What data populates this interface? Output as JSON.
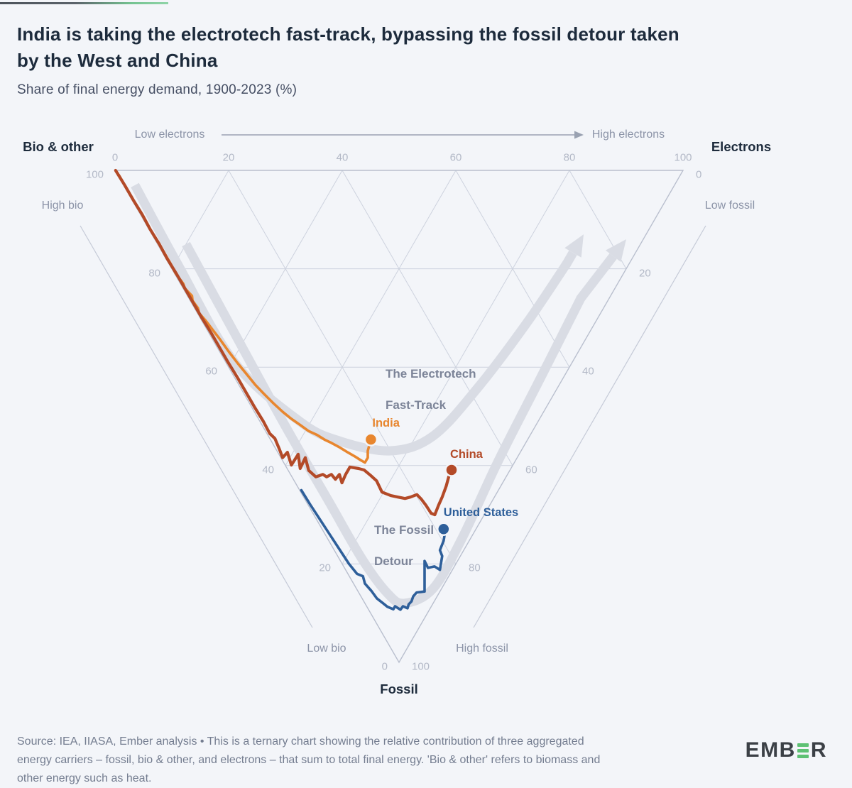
{
  "header": {
    "title": "India is taking the electrotech fast-track, bypassing the fossil detour taken\nby the West and China",
    "subtitle": "Share of final energy demand, 1900-2023 (%)"
  },
  "chart_data": {
    "type": "ternary",
    "title": "India is taking the electrotech fast-track, bypassing the fossil detour taken by the West and China",
    "subtitle": "Share of final energy demand, 1900-2023 (%)",
    "point_format": "[fossil_pct, electrons_pct]; bio_other_pct = 100 - fossil - electrons",
    "axes": {
      "top": {
        "corner_label": "Electrons",
        "low_label": "Low electrons",
        "high_label": "High electrons",
        "ticks": [
          0,
          20,
          40,
          60,
          80,
          100
        ]
      },
      "left": {
        "corner_label": "Bio & other",
        "high_label": "High bio",
        "low_label": "Low bio",
        "ticks": [
          100,
          80,
          60,
          40,
          20,
          0
        ]
      },
      "right": {
        "corner_label": "Fossil",
        "low_label": "Low fossil",
        "high_label": "High fossil",
        "ticks": [
          0,
          20,
          40,
          60,
          80,
          100
        ]
      }
    },
    "grid": {
      "step": 20,
      "on": true
    },
    "series": [
      {
        "name": "India",
        "color": "#e8862e",
        "points": [
          [
            1,
            0.2
          ],
          [
            4,
            0.2
          ],
          [
            7,
            0.2
          ],
          [
            10,
            0.3
          ],
          [
            13,
            0.2
          ],
          [
            16,
            0.3
          ],
          [
            19,
            0.3
          ],
          [
            21,
            0.2
          ],
          [
            23,
            0.5
          ],
          [
            24,
            0.3
          ],
          [
            25.5,
            0.8
          ],
          [
            26.5,
            0.4
          ],
          [
            28,
            0.6
          ],
          [
            29,
            0.3
          ],
          [
            30.6,
            0.7
          ],
          [
            32.5,
            1.0
          ],
          [
            34.3,
            1.3
          ],
          [
            36.8,
            1.6
          ],
          [
            39.2,
            2.0
          ],
          [
            41.6,
            2.5
          ],
          [
            43.6,
            2.9
          ],
          [
            45.4,
            3.5
          ],
          [
            47.3,
            4.2
          ],
          [
            49.1,
            5.0
          ],
          [
            50.5,
            5.8
          ],
          [
            51.7,
            6.7
          ],
          [
            53.0,
            7.6
          ],
          [
            53.8,
            8.7
          ],
          [
            54.8,
            9.6
          ],
          [
            55.4,
            10.4
          ],
          [
            56.3,
            11.4
          ],
          [
            57.3,
            12.3
          ],
          [
            58.2,
            13.2
          ],
          [
            58.9,
            13.8
          ],
          [
            59.4,
            14.3
          ],
          [
            58.4,
            15.3
          ],
          [
            57.0,
            16.0
          ],
          [
            54.7,
            17.7
          ]
        ]
      },
      {
        "name": "China",
        "color": "#b34a28",
        "points": [
          [
            0,
            0.1
          ],
          [
            3,
            0.2
          ],
          [
            6,
            0.2
          ],
          [
            9,
            0.3
          ],
          [
            12,
            0.2
          ],
          [
            15,
            0.3
          ],
          [
            18,
            0.2
          ],
          [
            21,
            0.3
          ],
          [
            24,
            0.3
          ],
          [
            27,
            0.3
          ],
          [
            30,
            0.3
          ],
          [
            33,
            0.4
          ],
          [
            36,
            0.4
          ],
          [
            39,
            0.4
          ],
          [
            42,
            0.5
          ],
          [
            45,
            0.5
          ],
          [
            48,
            0.5
          ],
          [
            51,
            0.6
          ],
          [
            53.5,
            0.5
          ],
          [
            54.5,
            0.9
          ],
          [
            56.7,
            0.6
          ],
          [
            58.4,
            0.3
          ],
          [
            57.3,
            1.7
          ],
          [
            59.9,
            1.1
          ],
          [
            57.7,
            3.4
          ],
          [
            60.6,
            2.3
          ],
          [
            58.4,
            4.3
          ],
          [
            61.0,
            3.6
          ],
          [
            62.3,
            4.2
          ],
          [
            61.8,
            5.7
          ],
          [
            62.3,
            6.1
          ],
          [
            61.8,
            7.2
          ],
          [
            62.8,
            7.4
          ],
          [
            61.8,
            8.6
          ],
          [
            63.5,
            8.2
          ],
          [
            61.8,
            9.7
          ],
          [
            60.3,
            11.2
          ],
          [
            60.6,
            12.6
          ],
          [
            60.9,
            13.4
          ],
          [
            62.0,
            14.0
          ],
          [
            63.1,
            14.5
          ],
          [
            65.4,
            14.3
          ],
          [
            66.1,
            15.5
          ],
          [
            66.4,
            16.6
          ],
          [
            66.7,
            17.7
          ],
          [
            66.4,
            18.8
          ],
          [
            65.9,
            20.2
          ],
          [
            66.8,
            20.5
          ],
          [
            68.1,
            20.7
          ],
          [
            69.7,
            20.8
          ],
          [
            70.0,
            21.3
          ],
          [
            68.1,
            22.9
          ],
          [
            66.4,
            24.4
          ],
          [
            64.2,
            26.2
          ],
          [
            62.3,
            27.6
          ],
          [
            60.9,
            28.8
          ]
        ]
      },
      {
        "name": "United States",
        "color": "#2e5f9a",
        "points": [
          [
            65,
            0.3
          ],
          [
            68,
            0.4
          ],
          [
            71,
            0.6
          ],
          [
            74,
            0.8
          ],
          [
            77,
            1.0
          ],
          [
            80,
            1.2
          ],
          [
            82,
            1.6
          ],
          [
            82.5,
            2.4
          ],
          [
            84,
            2.0
          ],
          [
            85.5,
            2.4
          ],
          [
            87,
            2.6
          ],
          [
            88,
            3.2
          ],
          [
            88.7,
            3.6
          ],
          [
            89.2,
            4.4
          ],
          [
            88.6,
            5.0
          ],
          [
            89.3,
            5.6
          ],
          [
            88.6,
            6.4
          ],
          [
            89.0,
            7.0
          ],
          [
            88.2,
            7.6
          ],
          [
            87.6,
            8.4
          ],
          [
            86.6,
            9.2
          ],
          [
            85.8,
            10.2
          ],
          [
            85.6,
            11.7
          ],
          [
            79.4,
            14.8
          ],
          [
            80.8,
            14.7
          ],
          [
            80.5,
            16.0
          ],
          [
            81.2,
            16.6
          ],
          [
            78.4,
            18.4
          ],
          [
            77.2,
            18.6
          ],
          [
            75.3,
            20.2
          ],
          [
            73.6,
            21.3
          ],
          [
            72.9,
            21.4
          ]
        ]
      }
    ],
    "annotations": {
      "fast_track": {
        "label": [
          "The Electrotech",
          "Fast-Track"
        ],
        "arrow_points": [
          [
            3,
            2
          ],
          [
            19,
            1.5
          ],
          [
            39,
            1.5
          ],
          [
            51,
            7
          ],
          [
            55,
            12
          ],
          [
            57,
            20
          ],
          [
            54,
            29
          ],
          [
            44,
            42
          ],
          [
            31,
            57
          ],
          [
            19,
            70
          ],
          [
            13,
            76
          ]
        ]
      },
      "fossil_detour": {
        "label": [
          "The Fossil",
          "Detour"
        ],
        "arrow_points": [
          [
            15,
            5
          ],
          [
            33,
            4.5
          ],
          [
            52,
            4
          ],
          [
            67,
            4
          ],
          [
            79,
            4
          ],
          [
            86,
            5
          ],
          [
            88,
            7
          ],
          [
            85,
            13.5
          ],
          [
            75,
            23.5
          ],
          [
            59,
            38
          ],
          [
            42,
            54
          ],
          [
            26,
            69
          ],
          [
            14,
            83
          ]
        ]
      }
    },
    "colors": {
      "grid": "#cdd2de",
      "triangle_edge": "#b9bfce",
      "outer_guide": "#c5cad7",
      "band": "#d9dce4",
      "tick_text": "#b3b9c7",
      "direction_text": "#8b93a7",
      "annotation_text": "#7c8498"
    }
  },
  "footer": {
    "source_text": "Source: IEA, IIASA, Ember analysis • This is a ternary chart showing the relative contribution of three aggregated\nenergy carriers – fossil, bio & other, and electrons – that sum to total final energy. 'Bio & other' refers to biomass and\nother energy such as heat.",
    "logo_left": "EMB",
    "logo_right": "R"
  }
}
